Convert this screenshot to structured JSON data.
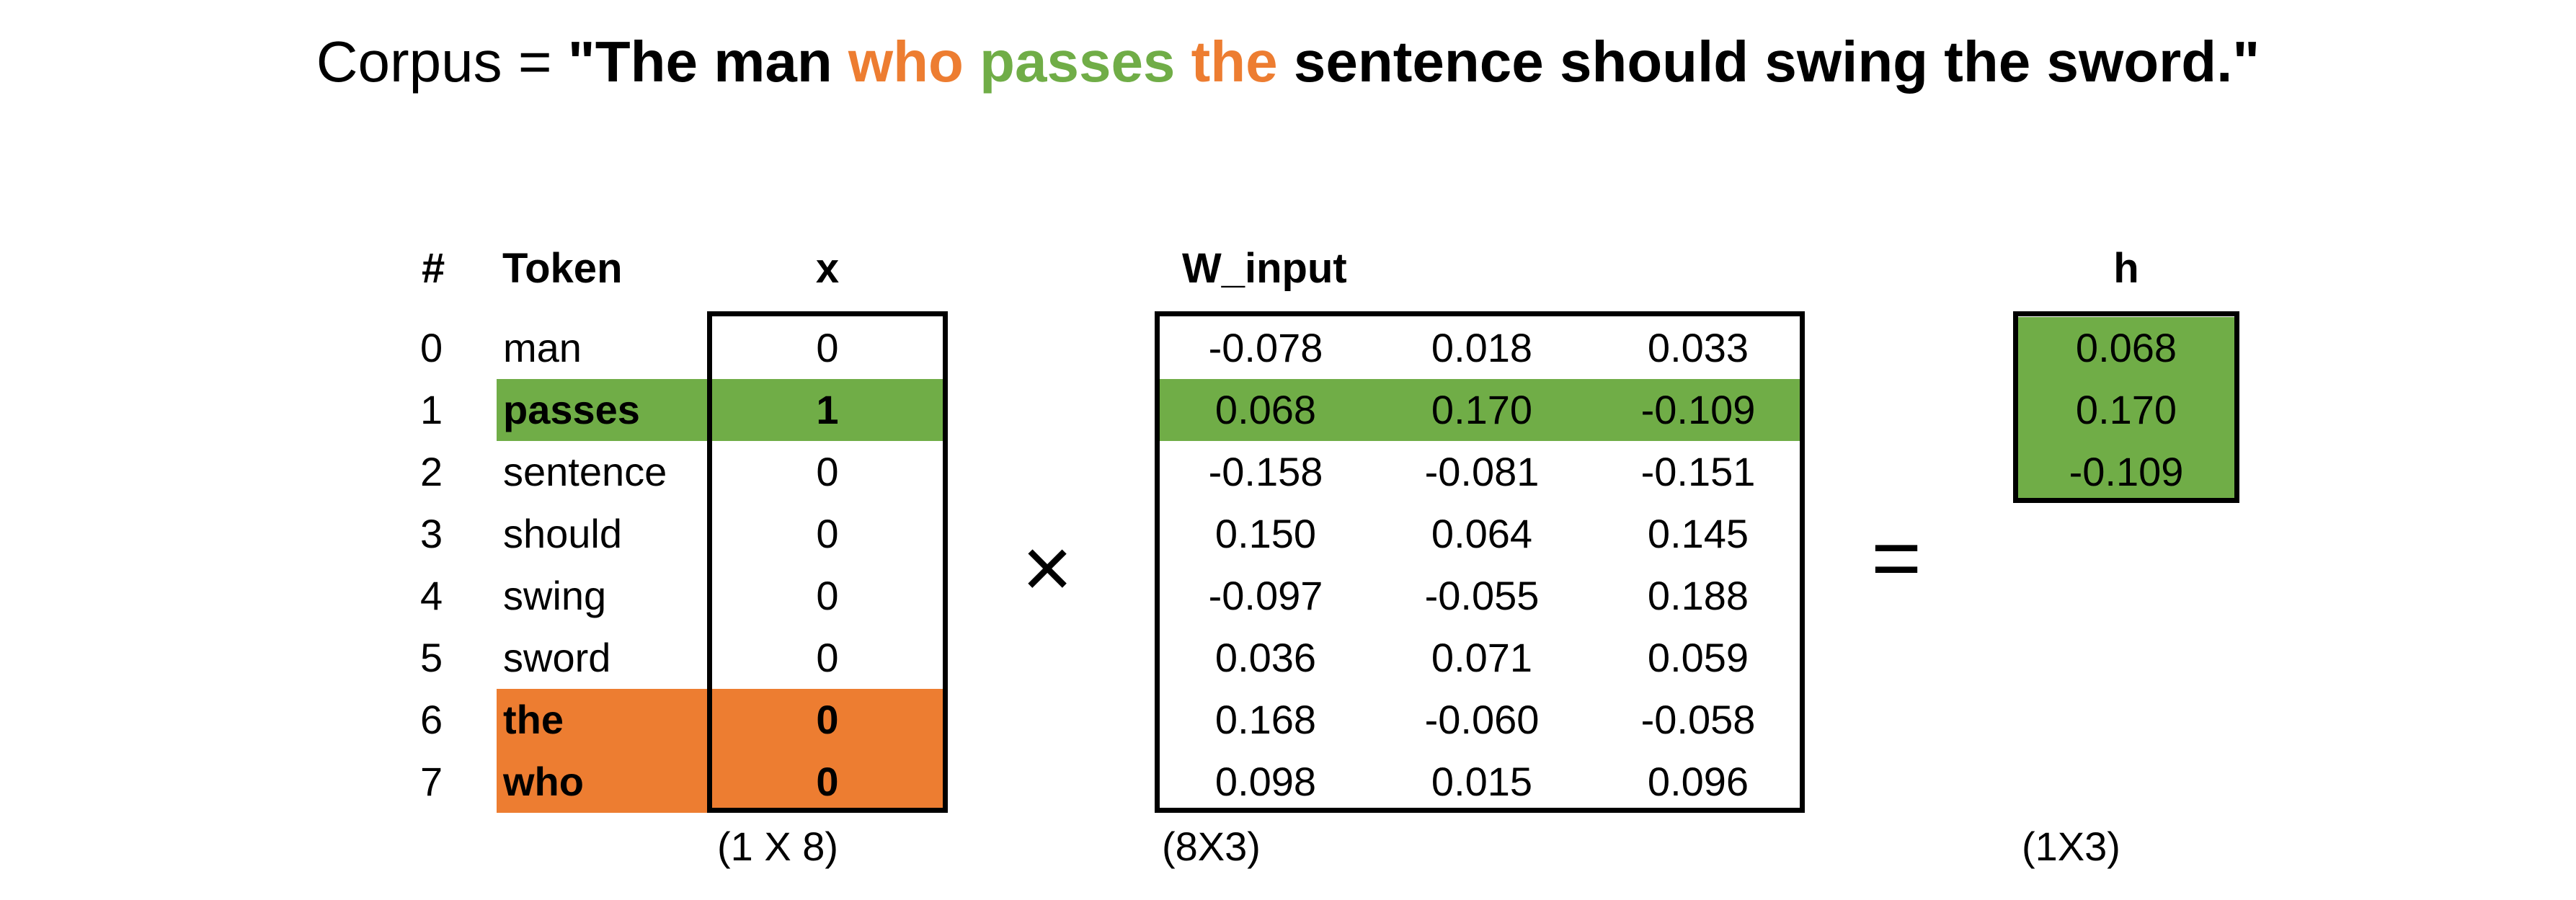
{
  "corpus": {
    "label": "Corpus = ",
    "open_quote": "\"",
    "words": [
      {
        "text": "The man ",
        "color": "#000000"
      },
      {
        "text": "who ",
        "color": "#ED7D31"
      },
      {
        "text": "passes ",
        "color": "#70AD47"
      },
      {
        "text": "the ",
        "color": "#ED7D31"
      },
      {
        "text": "sentence should swing the sword.",
        "color": "#000000"
      }
    ],
    "close_quote": "\""
  },
  "headers": {
    "index": "#",
    "token": "Token",
    "x": "x",
    "w_input": "W_input",
    "h": "h"
  },
  "rows": [
    {
      "index": "0",
      "token": "man",
      "x": "0",
      "w": [
        "-0.078",
        "0.018",
        "0.033"
      ],
      "highlight": "none"
    },
    {
      "index": "1",
      "token": "passes",
      "x": "1",
      "w": [
        "0.068",
        "0.170",
        "-0.109"
      ],
      "highlight": "green"
    },
    {
      "index": "2",
      "token": "sentence",
      "x": "0",
      "w": [
        "-0.158",
        "-0.081",
        "-0.151"
      ],
      "highlight": "none"
    },
    {
      "index": "3",
      "token": "should",
      "x": "0",
      "w": [
        "0.150",
        "0.064",
        "0.145"
      ],
      "highlight": "none"
    },
    {
      "index": "4",
      "token": "swing",
      "x": "0",
      "w": [
        "-0.097",
        "-0.055",
        "0.188"
      ],
      "highlight": "none"
    },
    {
      "index": "5",
      "token": "sword",
      "x": "0",
      "w": [
        "0.036",
        "0.071",
        "0.059"
      ],
      "highlight": "none"
    },
    {
      "index": "6",
      "token": "the",
      "x": "0",
      "w": [
        "0.168",
        "-0.060",
        "-0.058"
      ],
      "highlight": "orange"
    },
    {
      "index": "7",
      "token": "who",
      "x": "0",
      "w": [
        "0.098",
        "0.015",
        "0.096"
      ],
      "highlight": "orange"
    }
  ],
  "h_values": [
    "0.068",
    "0.170",
    "-0.109"
  ],
  "operators": {
    "multiply": "×",
    "equals": "="
  },
  "dimensions": {
    "x": "(1 X 8)",
    "w_input": "(8X3)",
    "h": "(1X3)"
  },
  "colors": {
    "green": "#70AD47",
    "orange": "#ED7D31",
    "border": "#000000"
  }
}
